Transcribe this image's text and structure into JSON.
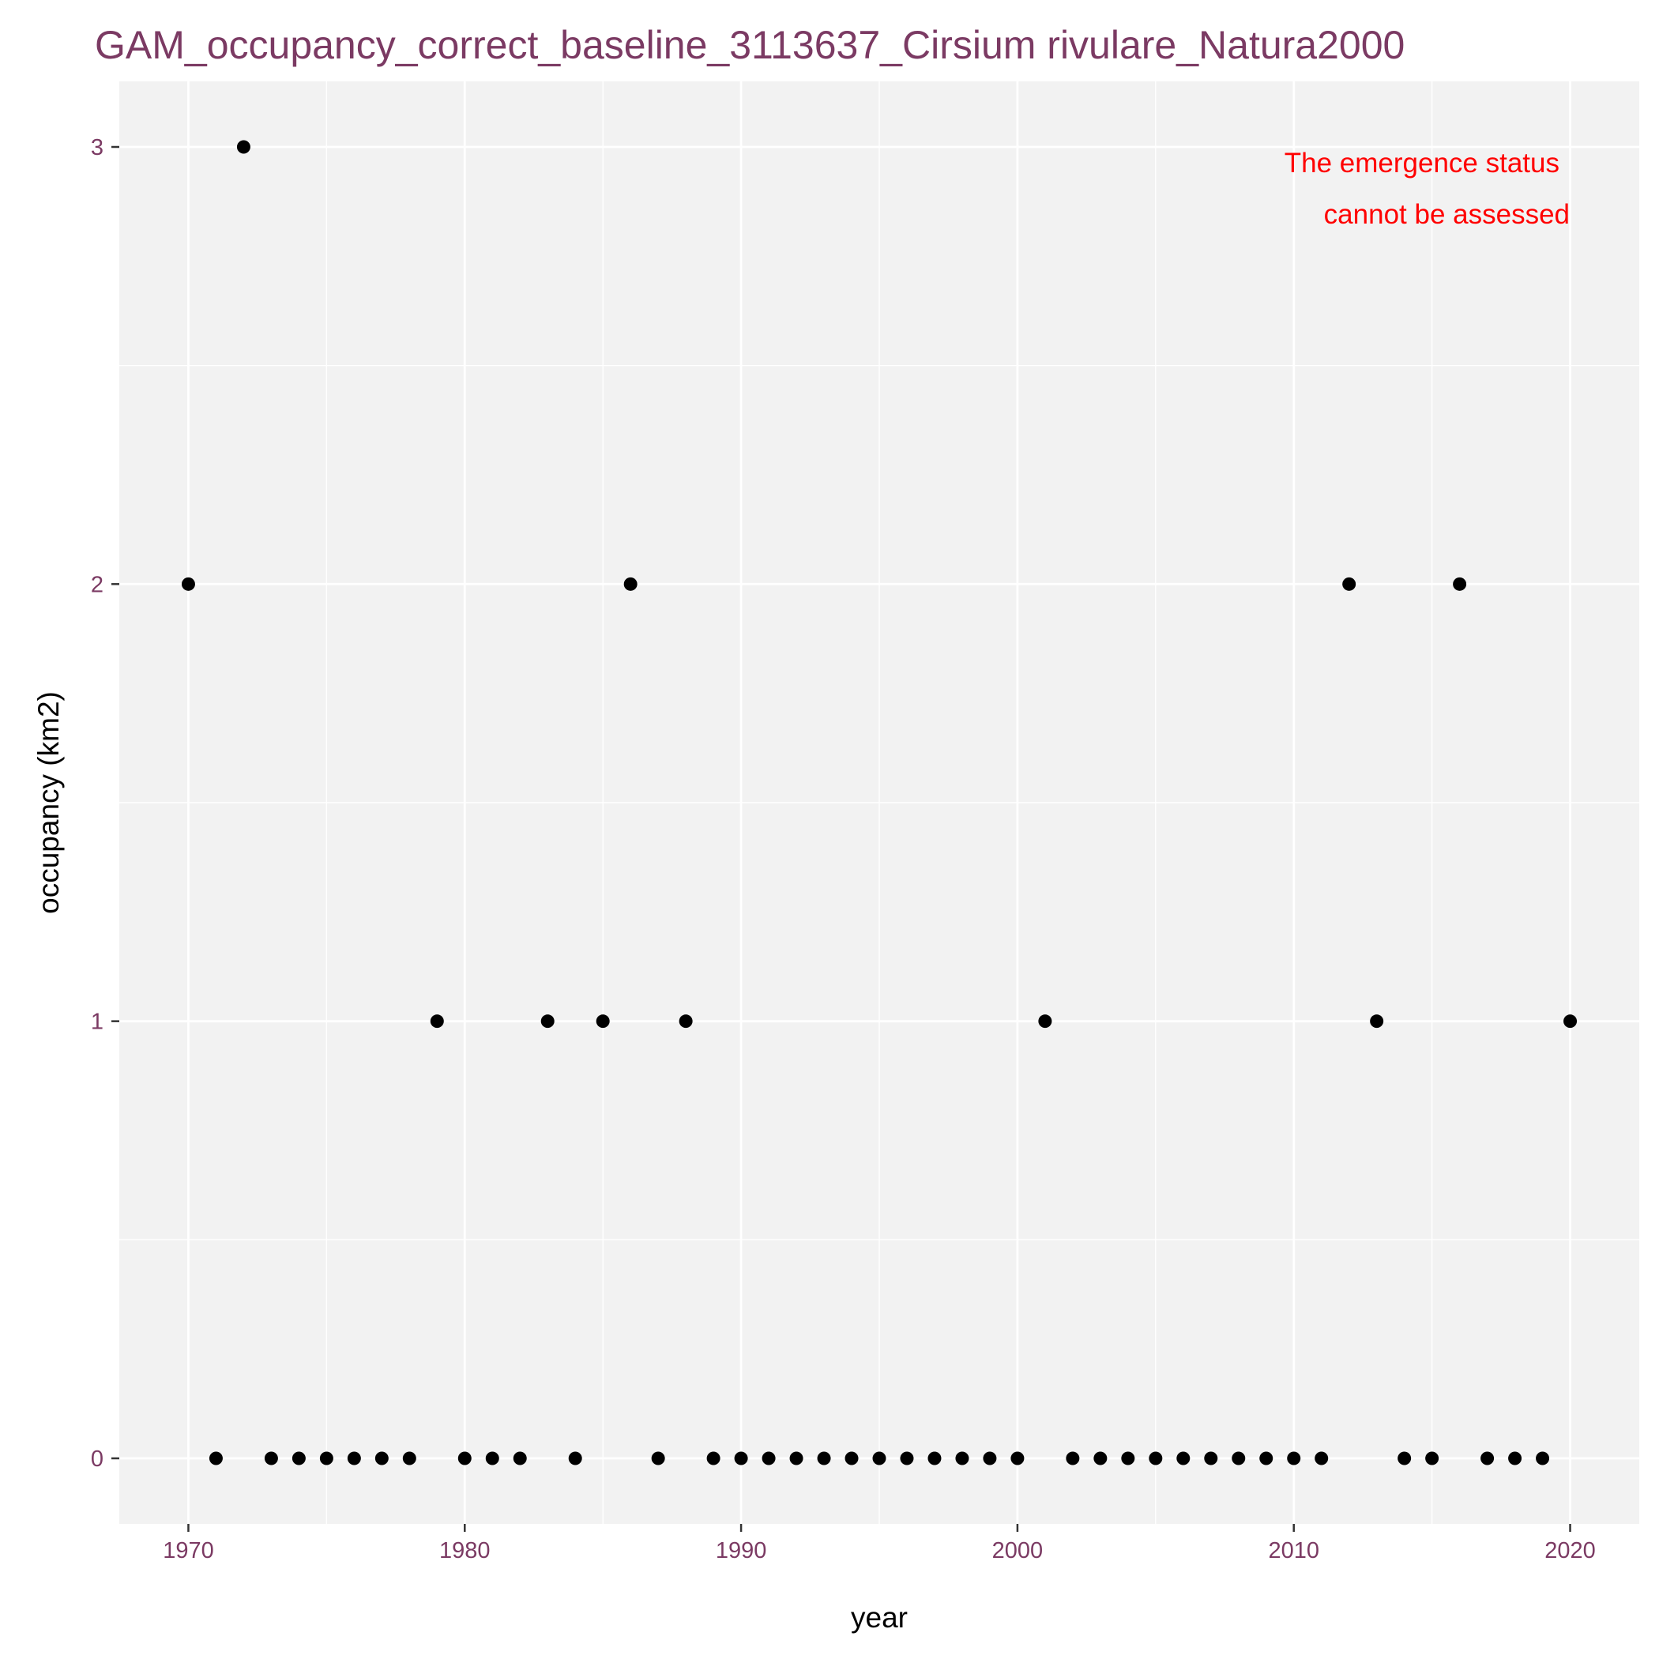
{
  "chart_data": {
    "type": "scatter",
    "title": "GAM_occupancy_correct_baseline_3113637_Cirsium rivulare_Natura2000",
    "xlabel": "year",
    "ylabel": "occupancy (km2)",
    "xlim": [
      1967.5,
      2022.5
    ],
    "ylim": [
      -0.15,
      3.15
    ],
    "x_ticks": [
      1970,
      1980,
      1990,
      2000,
      2010,
      2020
    ],
    "y_ticks": [
      0,
      1,
      2,
      3
    ],
    "grid": true,
    "annotation": [
      "The emergence status",
      "cannot be assessed"
    ],
    "colors": {
      "panel": "#f2f2f2",
      "grid": "#ffffff",
      "point": "#000000",
      "annotation": "#ff0000",
      "title": "#7b3a63"
    },
    "x": [
      1970,
      1971,
      1972,
      1973,
      1974,
      1975,
      1976,
      1977,
      1978,
      1979,
      1980,
      1981,
      1982,
      1983,
      1984,
      1985,
      1986,
      1987,
      1988,
      1989,
      1990,
      1991,
      1992,
      1993,
      1994,
      1995,
      1996,
      1997,
      1998,
      1999,
      2000,
      2001,
      2002,
      2003,
      2004,
      2005,
      2006,
      2007,
      2008,
      2009,
      2010,
      2011,
      2012,
      2013,
      2014,
      2015,
      2016,
      2017,
      2018,
      2019,
      2020
    ],
    "y": [
      2,
      0,
      3,
      0,
      0,
      0,
      0,
      0,
      0,
      1,
      0,
      0,
      0,
      1,
      0,
      1,
      2,
      0,
      1,
      0,
      0,
      0,
      0,
      0,
      0,
      0,
      0,
      0,
      0,
      0,
      0,
      1,
      0,
      0,
      0,
      0,
      0,
      0,
      0,
      0,
      0,
      0,
      2,
      1,
      0,
      0,
      2,
      0,
      0,
      0,
      1
    ]
  }
}
